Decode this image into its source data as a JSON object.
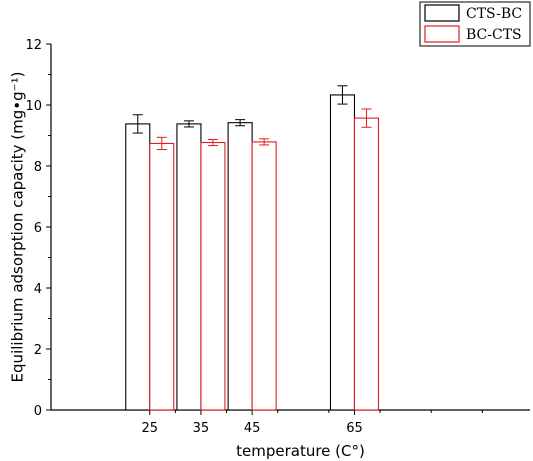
{
  "chart_data": {
    "type": "bar",
    "xlabel": "temperature (C°)",
    "ylabel": "Equilibrium adsorption capacity (mg•g⁻¹)",
    "ylim": [
      0,
      12
    ],
    "yticks": [
      0,
      2,
      4,
      6,
      8,
      10,
      12
    ],
    "categories": [
      25,
      35,
      45,
      65
    ],
    "grid": false,
    "legend_position": "top-right",
    "series": [
      {
        "name": "CTS-BC",
        "color": "#000000",
        "values": [
          9.38,
          9.38,
          9.42,
          10.33
        ],
        "errors": [
          0.3,
          0.1,
          0.1,
          0.3
        ]
      },
      {
        "name": "BC-CTS",
        "color": "#e41a1c",
        "values": [
          8.74,
          8.77,
          8.79,
          9.57
        ],
        "errors": [
          0.2,
          0.1,
          0.1,
          0.3
        ]
      }
    ]
  }
}
